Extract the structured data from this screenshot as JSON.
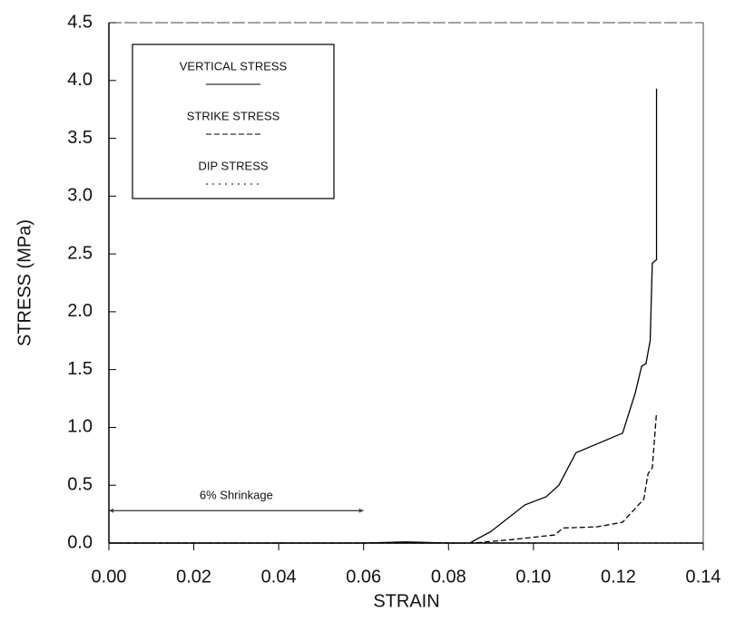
{
  "chart_data": {
    "type": "line",
    "xlabel": "STRAIN",
    "ylabel": "STRESS (MPa)",
    "xlim": [
      0,
      0.14
    ],
    "ylim": [
      0,
      4.5
    ],
    "xticks": [
      {
        "value": 0,
        "label": "0.00"
      },
      0.02,
      0.04,
      0.06,
      0.08,
      {
        "value": 0.1,
        "label": "0.10"
      },
      0.12,
      0.14
    ],
    "yticks": [
      {
        "value": 0,
        "label": "0.0"
      },
      0.5,
      {
        "value": 1,
        "label": "1.0"
      },
      1.5,
      {
        "value": 2,
        "label": "2.0"
      },
      2.5,
      {
        "value": 3,
        "label": "3.0"
      },
      3.5,
      {
        "value": 4,
        "label": "4.0"
      },
      4.5
    ],
    "legend": "upper left",
    "series": [
      {
        "name": "VERTICAL STRESS",
        "color": "#000000",
        "dash": "solid",
        "x": [
          0,
          0.06,
          0.07,
          0.08,
          0.085,
          0.09,
          0.098,
          0.103,
          0.106,
          0.11,
          0.121,
          0.124,
          0.1255,
          0.1265,
          0.1275,
          0.128,
          0.129,
          0.129
        ],
        "values": [
          0,
          0,
          0.01,
          0,
          0,
          0.1,
          0.33,
          0.4,
          0.5,
          0.78,
          0.95,
          1.3,
          1.53,
          1.55,
          1.75,
          2.42,
          2.45,
          3.93
        ]
      },
      {
        "name": "STRIKE STRESS",
        "color": "#000000",
        "dash": "dashed",
        "x": [
          0,
          0.08,
          0.086,
          0.095,
          0.105,
          0.107,
          0.115,
          0.121,
          0.126,
          0.127,
          0.128,
          0.129
        ],
        "values": [
          0,
          0,
          0,
          0.03,
          0.07,
          0.13,
          0.14,
          0.18,
          0.38,
          0.6,
          0.65,
          1.13
        ]
      },
      {
        "name": "DIP STRESS",
        "color": "#000000",
        "dash": "dotted",
        "x": [
          0,
          0.129,
          0.137
        ],
        "values": [
          0,
          0,
          0
        ]
      }
    ],
    "annotations": [
      {
        "text": "6% Shrinkage",
        "x": [
          0,
          0.06
        ],
        "y": 0.28
      }
    ]
  }
}
